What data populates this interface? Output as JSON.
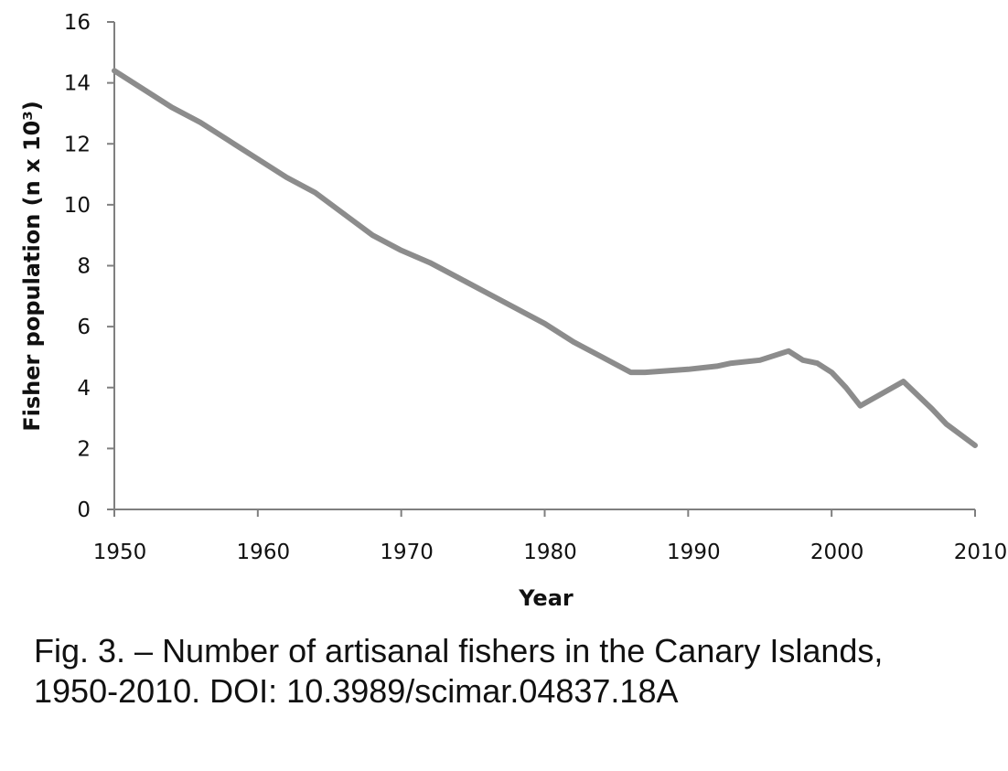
{
  "colors": {
    "line": "#8c8c8c",
    "axis": "#7f7f7f",
    "text": "#111111"
  },
  "chart_data": {
    "type": "line",
    "title": "",
    "xlabel": "Year",
    "ylabel": "Fisher population (n x 10³)",
    "xlim": [
      1950,
      2010
    ],
    "ylim": [
      0,
      16
    ],
    "x_ticks": [
      "1950",
      "1960",
      "1970",
      "1980",
      "1990",
      "2000",
      "2010"
    ],
    "y_ticks": [
      "0",
      "2",
      "4",
      "6",
      "8",
      "10",
      "12",
      "14",
      "16"
    ],
    "grid": false,
    "legend": "none",
    "series": [
      {
        "x": [
          1950,
          1952,
          1954,
          1956,
          1958,
          1960,
          1962,
          1964,
          1966,
          1968,
          1970,
          1972,
          1974,
          1976,
          1978,
          1980,
          1982,
          1984,
          1986,
          1987,
          1990,
          1992,
          1993,
          1995,
          1997,
          1998,
          1999,
          2000,
          2001,
          2002,
          2005,
          2007,
          2008,
          2010
        ],
        "y": [
          14.4,
          13.8,
          13.2,
          12.7,
          12.1,
          11.5,
          10.9,
          10.4,
          9.7,
          9.0,
          8.5,
          8.1,
          7.6,
          7.1,
          6.6,
          6.1,
          5.5,
          5.0,
          4.5,
          4.5,
          4.6,
          4.7,
          4.8,
          4.9,
          5.2,
          4.9,
          4.8,
          4.5,
          4.0,
          3.4,
          4.2,
          3.3,
          2.8,
          2.1
        ]
      }
    ]
  },
  "caption": {
    "line1": "Fig. 3. – Number of artisanal fishers in the Canary Islands,",
    "line2": "1950-2010. DOI: 10.3989/scimar.04837.18A"
  }
}
